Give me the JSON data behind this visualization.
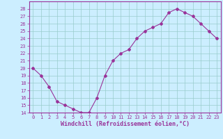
{
  "x": [
    0,
    1,
    2,
    3,
    4,
    5,
    6,
    7,
    8,
    9,
    10,
    11,
    12,
    13,
    14,
    15,
    16,
    17,
    18,
    19,
    20,
    21,
    22,
    23
  ],
  "y": [
    20,
    19,
    17.5,
    15.5,
    15,
    14.5,
    14,
    14,
    16,
    19,
    21,
    22,
    22.5,
    24,
    25,
    25.5,
    26,
    27.5,
    28,
    27.5,
    27,
    26,
    25,
    24
  ],
  "line_color": "#993399",
  "marker": "D",
  "marker_size": 2,
  "bg_color": "#cceeff",
  "grid_color": "#99cccc",
  "xlabel": "Windchill (Refroidissement éolien,°C)",
  "ylim": [
    14,
    29
  ],
  "yticks": [
    14,
    15,
    16,
    17,
    18,
    19,
    20,
    21,
    22,
    23,
    24,
    25,
    26,
    27,
    28
  ],
  "xlim": [
    -0.5,
    23.5
  ],
  "xticks": [
    0,
    1,
    2,
    3,
    4,
    5,
    6,
    7,
    8,
    9,
    10,
    11,
    12,
    13,
    14,
    15,
    16,
    17,
    18,
    19,
    20,
    21,
    22,
    23
  ],
  "tick_color": "#993399",
  "tick_fontsize": 5.0,
  "xlabel_fontsize": 6.0,
  "spine_color": "#993399",
  "line_width": 0.8
}
